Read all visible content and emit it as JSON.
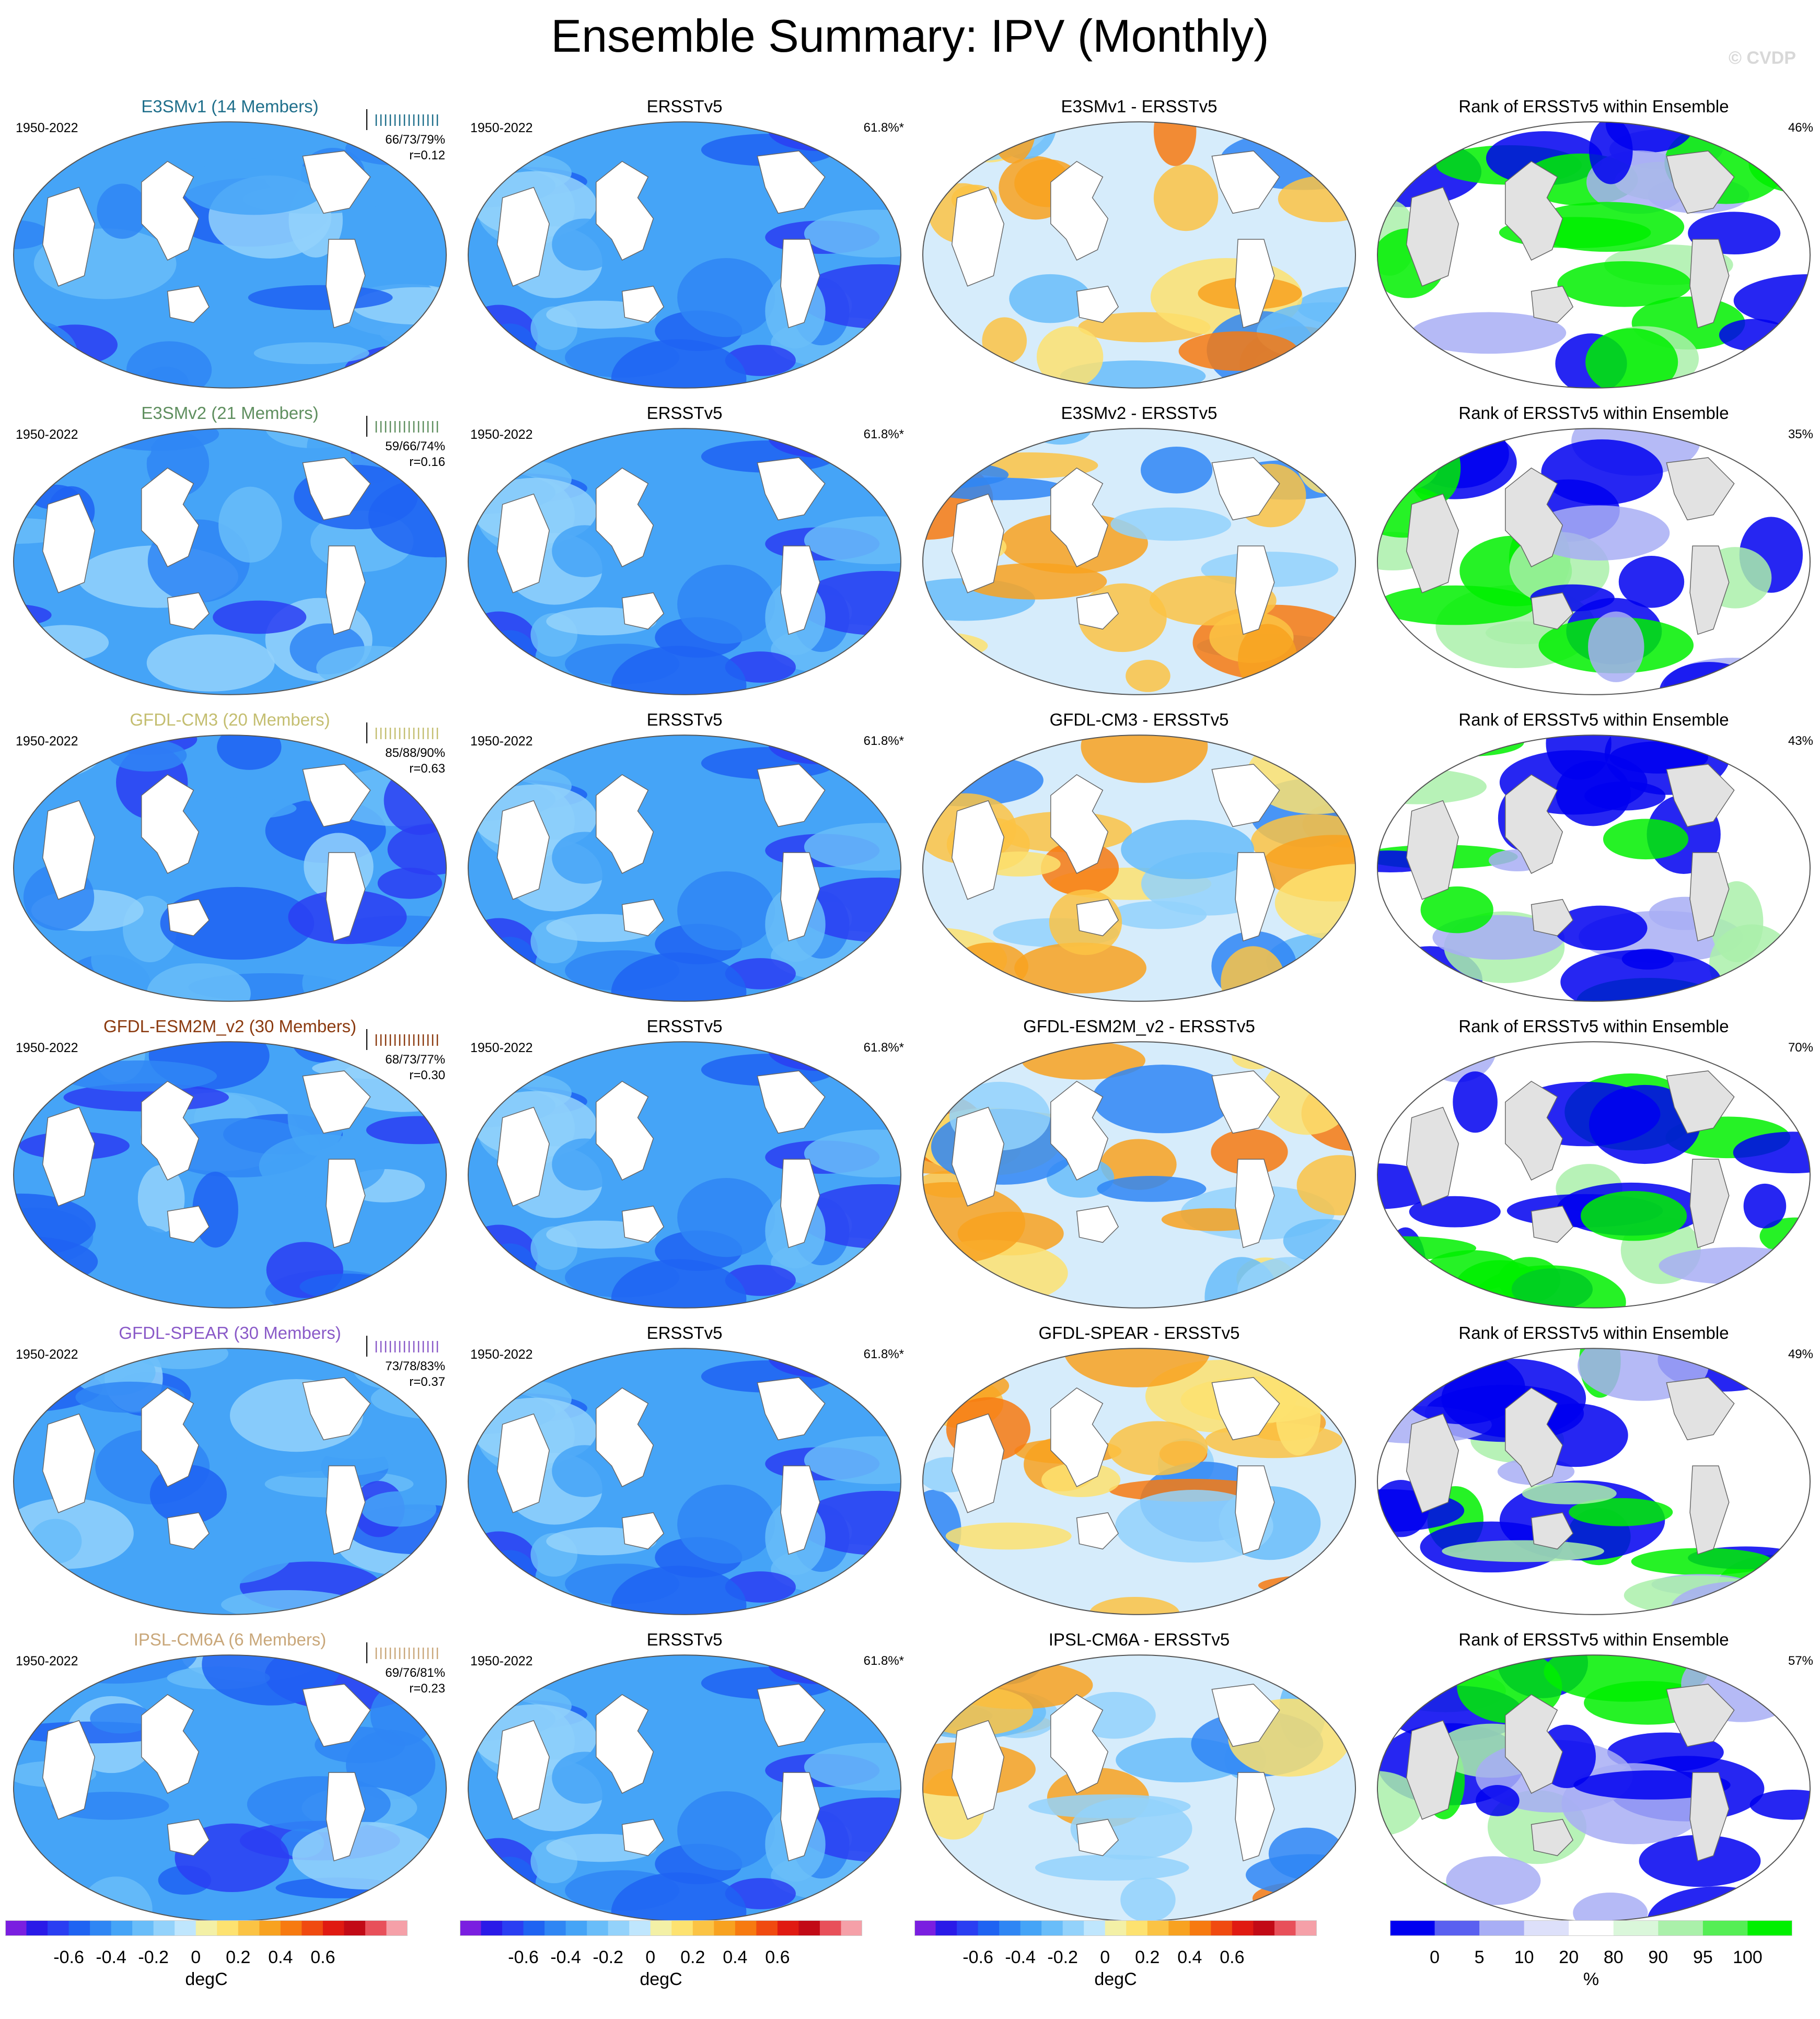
{
  "title": "Ensemble Summary: IPV (Monthly)",
  "credit": "© CVDP",
  "period": "1950-2022",
  "obs_label": "ERSSTv5",
  "obs_pct": "61.8%*",
  "rank_title": "Rank of ERSSTv5 within Ensemble",
  "chart_data": {
    "type": "heatmap",
    "rows": [
      {
        "model": "E3SMv1 (14 Members)",
        "model_color": "#1f6f8b",
        "stats_line1": "66/73/79%",
        "stats_line2": "r=0.12",
        "diff_title": "E3SMv1 - ERSSTv5",
        "rank_pct": "46%"
      },
      {
        "model": "E3SMv2 (21 Members)",
        "model_color": "#5f8f5f",
        "stats_line1": "59/66/74%",
        "stats_line2": "r=0.16",
        "diff_title": "E3SMv2 - ERSSTv5",
        "rank_pct": "35%"
      },
      {
        "model": "GFDL-CM3 (20 Members)",
        "model_color": "#c4be70",
        "stats_line1": "85/88/90%",
        "stats_line2": "r=0.63",
        "diff_title": "GFDL-CM3 - ERSSTv5",
        "rank_pct": "43%"
      },
      {
        "model": "GFDL-ESM2M_v2 (30 Members)",
        "model_color": "#8b3a0f",
        "stats_line1": "68/73/77%",
        "stats_line2": "r=0.30",
        "diff_title": "GFDL-ESM2M_v2 - ERSSTv5",
        "rank_pct": "70%"
      },
      {
        "model": "GFDL-SPEAR (30 Members)",
        "model_color": "#8a5ac8",
        "stats_line1": "73/78/83%",
        "stats_line2": "r=0.37",
        "diff_title": "GFDL-SPEAR - ERSSTv5",
        "rank_pct": "49%"
      },
      {
        "model": "IPSL-CM6A (6 Members)",
        "model_color": "#c9a77a",
        "stats_line1": "69/76/81%",
        "stats_line2": "r=0.23",
        "diff_title": "IPSL-CM6A - ERSSTv5",
        "rank_pct": "57%"
      }
    ],
    "temp_colorbar": {
      "unit": "degC",
      "tick_labels": [
        "-0.6",
        "-0.4",
        "-0.2",
        "0",
        "0.2",
        "0.4",
        "0.6"
      ],
      "colors": [
        "#7a1fe0",
        "#2a1ae8",
        "#2a3ef2",
        "#1f63f2",
        "#2f86f4",
        "#45a4f7",
        "#69bdf9",
        "#93d2fb",
        "#bfe6fd",
        "#f3f0a6",
        "#fde270",
        "#fbc344",
        "#f8a220",
        "#f77a10",
        "#f04a10",
        "#e01a12",
        "#c20a16",
        "#e8505a",
        "#f5a0a8"
      ]
    },
    "rank_colorbar": {
      "unit": "%",
      "tick_labels": [
        "0",
        "5",
        "10",
        "20",
        "80",
        "90",
        "95",
        "100"
      ],
      "colors": [
        "#0000f0",
        "#5a60f0",
        "#a8aef5",
        "#dde0fa",
        "#ffffff",
        "#daf7da",
        "#aaf0aa",
        "#55ee55",
        "#00f000"
      ]
    }
  }
}
